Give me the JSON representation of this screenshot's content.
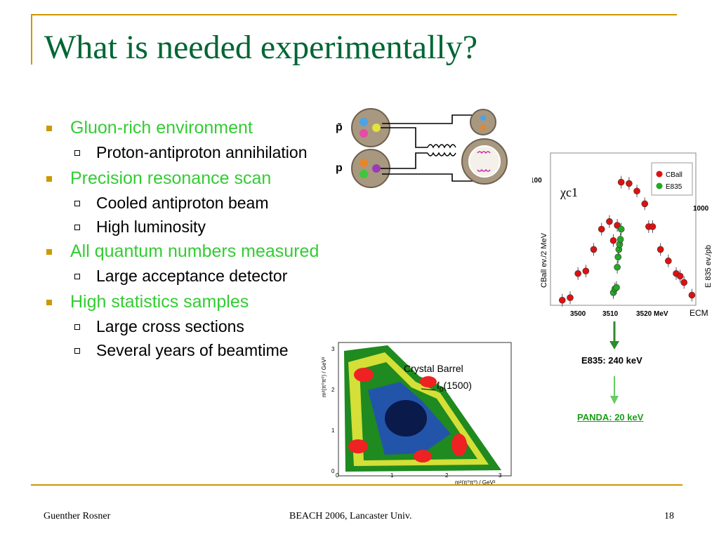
{
  "slide": {
    "title": "What is needed experimentally?",
    "bullets": [
      {
        "text": "Gluon-rich environment",
        "sub": [
          "Proton-antiproton annihilation"
        ]
      },
      {
        "text": "Precision resonance scan",
        "sub": [
          "Cooled antiproton beam",
          "High luminosity"
        ]
      },
      {
        "text": "All quantum numbers measured",
        "sub": [
          "Large acceptance detector"
        ]
      },
      {
        "text": "High statistics samples",
        "sub": [
          "Large cross sections",
          "Several years of beamtime"
        ]
      }
    ]
  },
  "diagram": {
    "pbar_label": "p̄",
    "p_label": "p"
  },
  "chart_data": {
    "type": "scatter",
    "title": "χc1",
    "xlabel": "ECM",
    "xticks": [
      "3500",
      "3510",
      "3520 MeV"
    ],
    "ylabel_left": "CBall ev./2 MeV",
    "ylabel_right": "E 835 ev./pb",
    "ytick_left": "100",
    "ytick_right": "1000",
    "xlim": [
      3493,
      3530
    ],
    "ylim": [
      0,
      120
    ],
    "series": [
      {
        "name": "CBall",
        "color": "#dd1111",
        "x": [
          3496,
          3498,
          3500,
          3502,
          3504,
          3506,
          3508,
          3509,
          3510,
          3511,
          3513,
          3515,
          3517,
          3518,
          3519,
          3521,
          3523,
          3525,
          3526,
          3527,
          3529
        ],
        "y": [
          4,
          6,
          25,
          27,
          44,
          60,
          66,
          51,
          63,
          97,
          96,
          90,
          80,
          62,
          62,
          44,
          35,
          25,
          23,
          18,
          8
        ]
      },
      {
        "name": "E835",
        "color": "#22aa22",
        "x": [
          3509,
          3509.4,
          3509.8,
          3510,
          3510.2,
          3510.4,
          3510.6,
          3510.8,
          3511
        ],
        "y": [
          10,
          13,
          14,
          30,
          38,
          44,
          48,
          52,
          60
        ]
      }
    ]
  },
  "results": {
    "e835": "E835: 240 keV",
    "panda": "PANDA: 20 keV"
  },
  "dalitz": {
    "label": "Crystal Barrel",
    "f0": "f",
    "f0_sub": "0",
    "f0_mass": "(1500)",
    "xlabel": "m²(π⁰π⁰) / GeV²",
    "ylabel": "m²(π⁰π⁰) / GeV²",
    "ticks": [
      "0",
      "1",
      "2",
      "3"
    ]
  },
  "footer": {
    "author": "Guenther Rosner",
    "event": "BEACH 2006, Lancaster Univ.",
    "page": "18"
  }
}
